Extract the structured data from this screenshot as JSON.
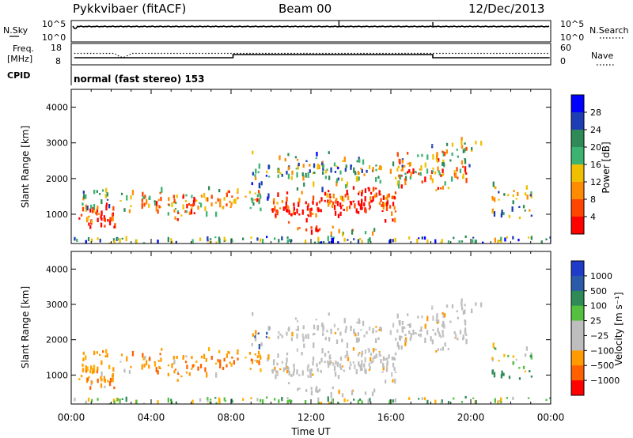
{
  "header": {
    "station": "Pykkvibaer (fitACF)",
    "beam": "Beam 00",
    "date": "12/Dec/2013"
  },
  "nsky_panel": {
    "left_label": "N.Sky",
    "left_ticks": [
      "10^5",
      "10^0"
    ],
    "right_label": "N.Search",
    "right_ticks": [
      "10^5",
      "10^0"
    ]
  },
  "freq_panel": {
    "left_label_1": "Freq.",
    "left_label_2": "[MHz]",
    "left_ticks": [
      "18",
      "8"
    ],
    "right_label": "Nave",
    "right_ticks": [
      "60",
      "0"
    ]
  },
  "cpid_panel": {
    "label": "CPID",
    "mode": "normal (fast stereo) 153"
  },
  "chart_data": [
    {
      "type": "heatmap",
      "name": "Power",
      "ylabel": "Slant Range [km]",
      "yticks": [
        1000,
        2000,
        3000,
        4000
      ],
      "ylim": [
        180,
        4500
      ],
      "xlim": [
        0,
        24
      ],
      "colorbar_label": "Power [dB]",
      "colorbar_ticks": [
        "4",
        "8",
        "12",
        "16",
        "20",
        "24",
        "28"
      ],
      "colorbar_colors": [
        "#0000ff",
        "#1e3cb4",
        "#2e8b57",
        "#3cb371",
        "#f0c000",
        "#ff8c00",
        "#ff4500",
        "#ff0000"
      ]
    },
    {
      "type": "heatmap",
      "name": "Velocity",
      "ylabel": "Slant Range [km]",
      "yticks": [
        1000,
        2000,
        3000,
        4000
      ],
      "ylim": [
        180,
        4500
      ],
      "xlim": [
        0,
        24
      ],
      "colorbar_label": "Velocity [m s⁻¹]",
      "colorbar_ticks": [
        "1000",
        "500",
        "100",
        "25",
        "−25",
        "−100",
        "−500",
        "−1000"
      ],
      "colorbar_colors": [
        "#1e3cc8",
        "#2a5aa8",
        "#2e8b57",
        "#55c040",
        "#bebebe",
        "#bebebe",
        "#ff9a00",
        "#ff6000",
        "#ff0000"
      ]
    }
  ],
  "xaxis": {
    "ticks": [
      "00:00",
      "04:00",
      "08:00",
      "12:00",
      "16:00",
      "20:00",
      "00:00"
    ],
    "label": "Time UT"
  }
}
